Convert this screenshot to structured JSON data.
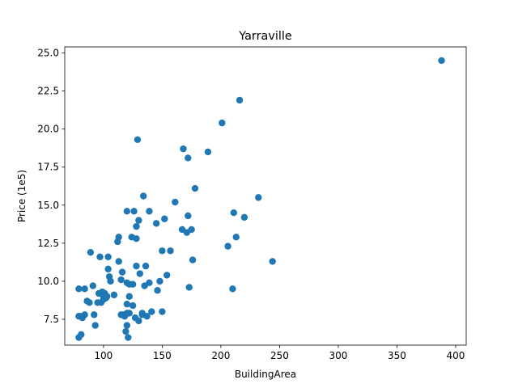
{
  "chart_data": {
    "type": "scatter",
    "title": "Yarraville",
    "xlabel": "BuildingArea",
    "ylabel": "Price (1e5)",
    "xlim": [
      67,
      409
    ],
    "ylim": [
      5.8,
      25.4
    ],
    "xticks": [
      100,
      150,
      200,
      250,
      300,
      350,
      400
    ],
    "xtick_labels": [
      "100",
      "150",
      "200",
      "250",
      "300",
      "350",
      "400"
    ],
    "yticks": [
      7.5,
      10.0,
      12.5,
      15.0,
      17.5,
      20.0,
      22.5,
      25.0
    ],
    "ytick_labels": [
      "7.5",
      "10.0",
      "12.5",
      "15.0",
      "17.5",
      "20.0",
      "22.5",
      "25.0"
    ],
    "grid": false,
    "marker_color": "#1f77b4",
    "series": [
      {
        "x": [
          388,
          216,
          201,
          129,
          168,
          172,
          189,
          178,
          232,
          134,
          161,
          120,
          126,
          139,
          211,
          220,
          172,
          128,
          145,
          152,
          167,
          171,
          175,
          130,
          113,
          112,
          206,
          124,
          128,
          213,
          157,
          150,
          176,
          244,
          89,
          97,
          104,
          113,
          131,
          136,
          116,
          128,
          148,
          154,
          104,
          105,
          115,
          120,
          122,
          173,
          210,
          79,
          84,
          91,
          99,
          101,
          106,
          103,
          125,
          139,
          135,
          133,
          146,
          96,
          100,
          98,
          102,
          109,
          115,
          120,
          122,
          100,
          102,
          95,
          86,
          88,
          122,
          125,
          117,
          120,
          133,
          141,
          137,
          150,
          80,
          84,
          82,
          79,
          92,
          118,
          121,
          127,
          130,
          93,
          120,
          119,
          121,
          81,
          79
        ],
        "y": [
          24.5,
          21.9,
          20.4,
          19.3,
          18.7,
          18.1,
          18.5,
          16.1,
          15.5,
          15.6,
          15.2,
          14.6,
          14.6,
          14.6,
          14.5,
          14.2,
          14.3,
          13.6,
          13.8,
          14.1,
          13.4,
          13.2,
          13.4,
          14.0,
          12.9,
          12.6,
          12.3,
          12.9,
          12.8,
          12.9,
          12.0,
          12.0,
          11.4,
          11.3,
          11.9,
          11.6,
          11.6,
          11.3,
          10.5,
          11.0,
          10.6,
          11.0,
          10.0,
          10.4,
          10.8,
          10.3,
          10.1,
          9.9,
          9.8,
          9.6,
          9.5,
          9.5,
          9.5,
          9.7,
          9.3,
          9.2,
          10.0,
          9.0,
          9.8,
          9.9,
          9.7,
          7.9,
          9.4,
          9.2,
          9.0,
          8.6,
          8.9,
          9.1,
          7.8,
          8.5,
          9.0,
          8.8,
          8.9,
          8.6,
          8.7,
          8.6,
          7.9,
          8.4,
          7.8,
          7.9,
          7.8,
          8.0,
          7.7,
          8.0,
          7.7,
          7.8,
          7.6,
          7.7,
          7.8,
          7.7,
          7.9,
          7.6,
          7.4,
          7.1,
          7.1,
          6.7,
          6.3,
          6.5,
          6.3
        ]
      }
    ]
  }
}
